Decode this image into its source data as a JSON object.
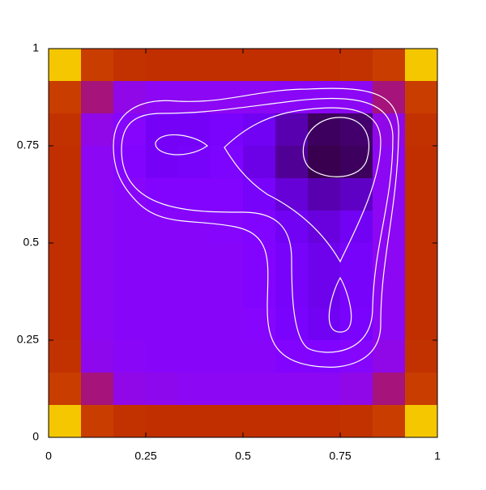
{
  "chart_data": {
    "type": "heatmap",
    "xlim": [
      0,
      1
    ],
    "ylim": [
      0,
      1
    ],
    "xticks": [
      0,
      0.25,
      0.5,
      0.75,
      1
    ],
    "yticks": [
      0,
      0.25,
      0.5,
      0.75,
      1
    ],
    "zlim": [
      0,
      1
    ],
    "z": [
      [
        0.92,
        0.62,
        0.58,
        0.57,
        0.57,
        0.57,
        0.57,
        0.57,
        0.57,
        0.58,
        0.62,
        0.92
      ],
      [
        0.62,
        0.42,
        0.32,
        0.3,
        0.3,
        0.3,
        0.3,
        0.29,
        0.29,
        0.3,
        0.42,
        0.62
      ],
      [
        0.58,
        0.32,
        0.27,
        0.21,
        0.21,
        0.23,
        0.2,
        0.12,
        0.06,
        0.07,
        0.32,
        0.58
      ],
      [
        0.57,
        0.3,
        0.26,
        0.21,
        0.22,
        0.24,
        0.18,
        0.1,
        0.05,
        0.06,
        0.3,
        0.57
      ],
      [
        0.57,
        0.3,
        0.28,
        0.26,
        0.26,
        0.26,
        0.22,
        0.16,
        0.12,
        0.14,
        0.3,
        0.57
      ],
      [
        0.57,
        0.3,
        0.28,
        0.28,
        0.28,
        0.27,
        0.25,
        0.2,
        0.17,
        0.2,
        0.3,
        0.57
      ],
      [
        0.57,
        0.3,
        0.28,
        0.28,
        0.28,
        0.28,
        0.26,
        0.22,
        0.19,
        0.22,
        0.3,
        0.57
      ],
      [
        0.57,
        0.3,
        0.28,
        0.28,
        0.28,
        0.28,
        0.26,
        0.22,
        0.19,
        0.22,
        0.3,
        0.57
      ],
      [
        0.57,
        0.3,
        0.28,
        0.28,
        0.28,
        0.28,
        0.27,
        0.23,
        0.2,
        0.23,
        0.3,
        0.57
      ],
      [
        0.58,
        0.31,
        0.29,
        0.28,
        0.28,
        0.28,
        0.28,
        0.26,
        0.25,
        0.27,
        0.32,
        0.58
      ],
      [
        0.62,
        0.42,
        0.32,
        0.31,
        0.3,
        0.3,
        0.3,
        0.3,
        0.3,
        0.32,
        0.42,
        0.62
      ],
      [
        0.92,
        0.62,
        0.58,
        0.57,
        0.57,
        0.57,
        0.57,
        0.57,
        0.57,
        0.58,
        0.62,
        0.92
      ]
    ]
  }
}
